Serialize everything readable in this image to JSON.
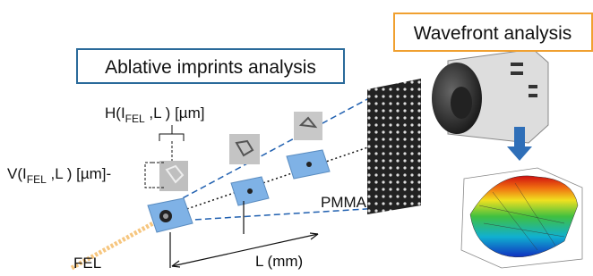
{
  "boxes": {
    "wavefront": "Wavefront analysis",
    "ablative": "Ablative imprints analysis"
  },
  "labels": {
    "h_label": {
      "prefix": "H(I",
      "subscript": "FEL",
      "suffix": " ,L ) [µm]"
    },
    "v_label": {
      "prefix": "V(I",
      "subscript": "FEL",
      "suffix": " ,L ) [µm]-"
    },
    "pmma": "PMMA",
    "fel": "FEL",
    "distance": "L (mm)"
  }
}
